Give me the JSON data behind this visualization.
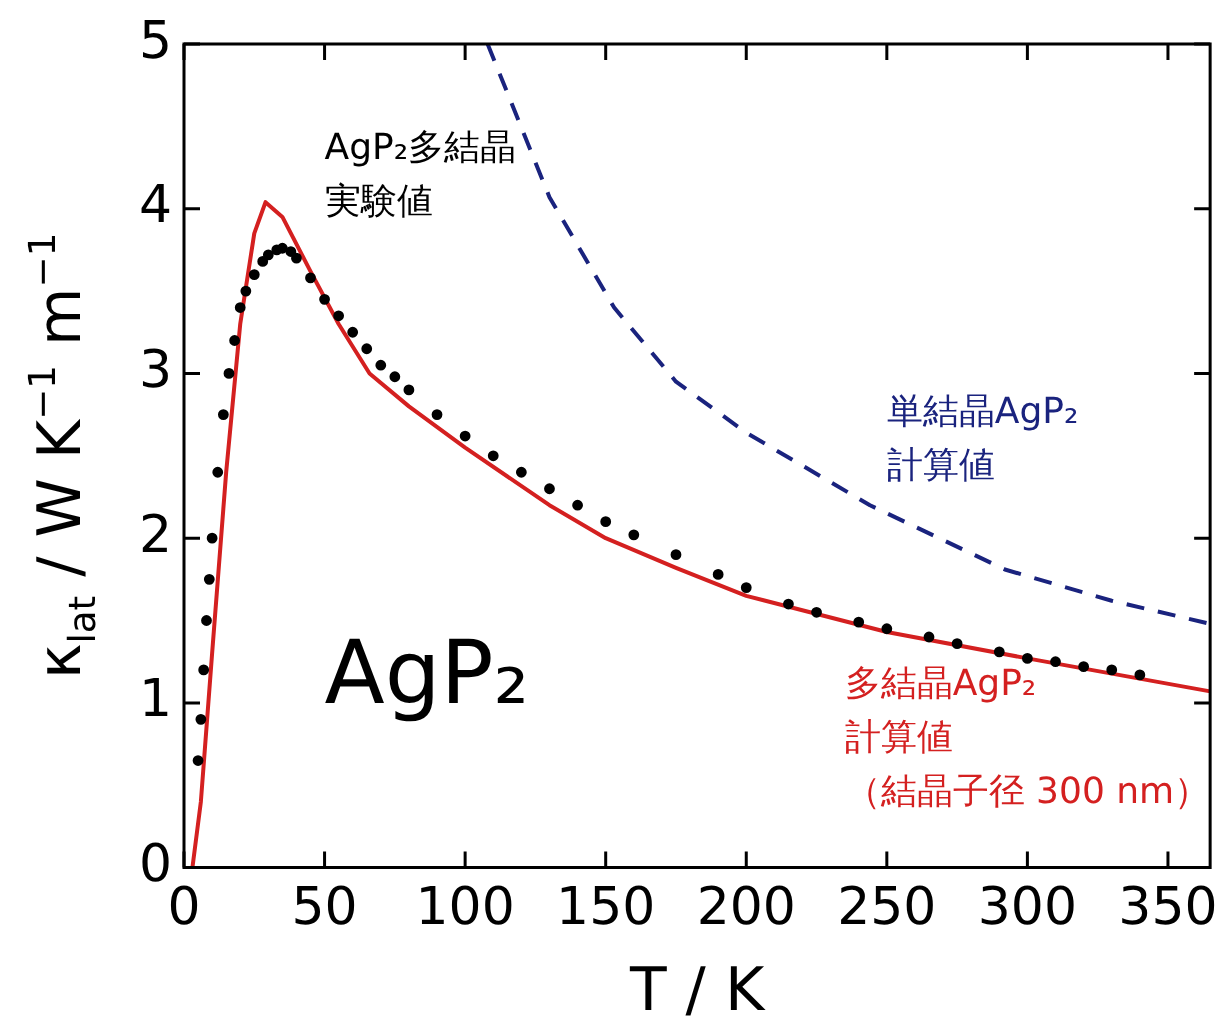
{
  "chart_data": {
    "type": "line",
    "xlabel": "T / K",
    "ylabel": "κ$_{lat}$ / W K$^{−1}$ m$^{−1}$",
    "xlim": [
      0,
      365
    ],
    "ylim": [
      0,
      5
    ],
    "xticks": [
      0,
      50,
      100,
      150,
      200,
      250,
      300,
      350
    ],
    "yticks": [
      0,
      1,
      2,
      3,
      4,
      5
    ],
    "grid": false,
    "legend": false,
    "annotations": [
      "AgP₂"
    ],
    "series": [
      {
        "name": "AgP₂多結晶実験値",
        "type": "scatter",
        "marker": "circle",
        "color": "#000000",
        "x": [
          5,
          6,
          7,
          8,
          9,
          10,
          12,
          14,
          16,
          18,
          20,
          22,
          25,
          28,
          30,
          33,
          35,
          38,
          40,
          45,
          50,
          55,
          60,
          65,
          70,
          75,
          80,
          90,
          100,
          110,
          120,
          130,
          140,
          150,
          160,
          175,
          190,
          200,
          215,
          225,
          240,
          250,
          265,
          275,
          290,
          300,
          310,
          320,
          330,
          340
        ],
        "values": [
          0.65,
          0.9,
          1.2,
          1.5,
          1.75,
          2.0,
          2.4,
          2.75,
          3.0,
          3.2,
          3.4,
          3.5,
          3.6,
          3.68,
          3.72,
          3.75,
          3.76,
          3.74,
          3.7,
          3.58,
          3.45,
          3.35,
          3.25,
          3.15,
          3.05,
          2.98,
          2.9,
          2.75,
          2.62,
          2.5,
          2.4,
          2.3,
          2.2,
          2.1,
          2.02,
          1.9,
          1.78,
          1.7,
          1.6,
          1.55,
          1.49,
          1.45,
          1.4,
          1.36,
          1.31,
          1.27,
          1.25,
          1.22,
          1.2,
          1.17
        ]
      },
      {
        "name": "多結晶AgP₂計算値（結晶子径 300 nm）",
        "type": "line",
        "line_style": "solid",
        "color": "#d42020",
        "x": [
          3,
          6,
          10,
          15,
          20,
          25,
          29,
          35,
          45,
          55,
          66,
          80,
          100,
          130,
          150,
          175,
          200,
          250,
          300,
          365
        ],
        "values": [
          0,
          0.4,
          1.3,
          2.4,
          3.3,
          3.85,
          4.04,
          3.95,
          3.62,
          3.3,
          3.0,
          2.8,
          2.55,
          2.2,
          2.0,
          1.82,
          1.65,
          1.43,
          1.27,
          1.07
        ]
      },
      {
        "name": "単結晶AgP₂計算値",
        "type": "line",
        "line_style": "dashed",
        "color": "#1a237e",
        "x": [
          108,
          130,
          153,
          175,
          200,
          244,
          292,
          330,
          365
        ],
        "values": [
          5,
          4.07,
          3.4,
          2.95,
          2.64,
          2.2,
          1.81,
          1.62,
          1.48
        ]
      }
    ]
  }
}
